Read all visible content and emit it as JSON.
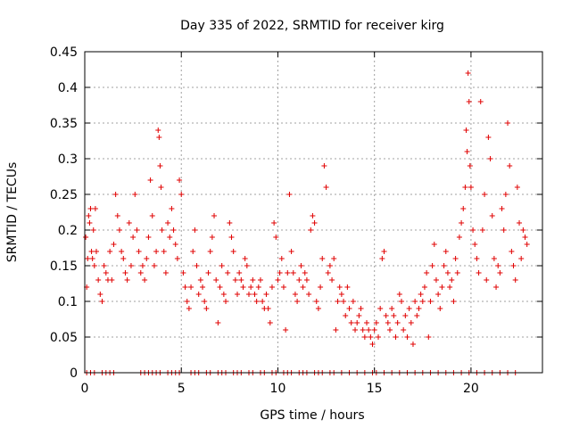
{
  "chart_data": {
    "type": "scatter",
    "title": "Day 335 of 2022, SRMTID for receiver kirg",
    "xlabel": "GPS time / hours",
    "ylabel": "SRMTID / TECUs",
    "xlim": [
      0,
      23.7
    ],
    "ylim": [
      0,
      0.45
    ],
    "xticks": [
      0,
      5,
      10,
      15,
      20
    ],
    "yticks": [
      0,
      0.05,
      0.1,
      0.15,
      0.2,
      0.25,
      0.3,
      0.35,
      0.4,
      0.45
    ],
    "xtick_labels": [
      "0",
      "5",
      "10",
      "15",
      "20"
    ],
    "ytick_labels": [
      "0",
      "0.05",
      "0.1",
      "0.15",
      "0.2",
      "0.25",
      "0.3",
      "0.35",
      "0.4",
      "0.45"
    ],
    "grid": true,
    "marker": "+",
    "color": "#e00000",
    "series": [
      {
        "name": "SRMTID",
        "points": [
          [
            0.05,
            0.19
          ],
          [
            0.1,
            0.12
          ],
          [
            0.15,
            0.16
          ],
          [
            0.2,
            0.22
          ],
          [
            0.25,
            0.21
          ],
          [
            0.3,
            0.23
          ],
          [
            0.35,
            0.17
          ],
          [
            0.4,
            0.16
          ],
          [
            0.45,
            0.2
          ],
          [
            0.5,
            0.15
          ],
          [
            0.55,
            0.23
          ],
          [
            0.6,
            0.17
          ],
          [
            0.7,
            0.13
          ],
          [
            0.8,
            0.11
          ],
          [
            0.9,
            0.1
          ],
          [
            1.0,
            0.15
          ],
          [
            1.1,
            0.14
          ],
          [
            1.2,
            0.13
          ],
          [
            1.3,
            0.17
          ],
          [
            1.4,
            0.13
          ],
          [
            1.5,
            0.18
          ],
          [
            1.6,
            0.25
          ],
          [
            1.7,
            0.22
          ],
          [
            1.8,
            0.2
          ],
          [
            1.9,
            0.17
          ],
          [
            2.0,
            0.16
          ],
          [
            2.1,
            0.14
          ],
          [
            2.2,
            0.13
          ],
          [
            2.3,
            0.21
          ],
          [
            2.4,
            0.15
          ],
          [
            2.5,
            0.19
          ],
          [
            2.6,
            0.25
          ],
          [
            2.7,
            0.2
          ],
          [
            2.8,
            0.17
          ],
          [
            2.9,
            0.14
          ],
          [
            3.0,
            0.15
          ],
          [
            3.1,
            0.13
          ],
          [
            3.2,
            0.16
          ],
          [
            3.3,
            0.19
          ],
          [
            3.4,
            0.27
          ],
          [
            3.5,
            0.22
          ],
          [
            3.6,
            0.15
          ],
          [
            3.7,
            0.17
          ],
          [
            3.8,
            0.34
          ],
          [
            3.85,
            0.33
          ],
          [
            3.9,
            0.29
          ],
          [
            3.95,
            0.26
          ],
          [
            4.0,
            0.2
          ],
          [
            4.1,
            0.17
          ],
          [
            4.2,
            0.14
          ],
          [
            4.3,
            0.21
          ],
          [
            4.4,
            0.19
          ],
          [
            4.5,
            0.23
          ],
          [
            4.6,
            0.2
          ],
          [
            4.7,
            0.18
          ],
          [
            4.8,
            0.16
          ],
          [
            4.9,
            0.27
          ],
          [
            5.0,
            0.25
          ],
          [
            5.1,
            0.14
          ],
          [
            5.2,
            0.12
          ],
          [
            5.3,
            0.1
          ],
          [
            5.4,
            0.09
          ],
          [
            5.5,
            0.12
          ],
          [
            5.6,
            0.17
          ],
          [
            5.7,
            0.2
          ],
          [
            5.8,
            0.15
          ],
          [
            5.9,
            0.11
          ],
          [
            6.0,
            0.13
          ],
          [
            6.1,
            0.12
          ],
          [
            6.2,
            0.1
          ],
          [
            6.3,
            0.09
          ],
          [
            6.4,
            0.14
          ],
          [
            6.5,
            0.17
          ],
          [
            6.6,
            0.19
          ],
          [
            6.7,
            0.22
          ],
          [
            6.8,
            0.13
          ],
          [
            6.9,
            0.07
          ],
          [
            7.0,
            0.12
          ],
          [
            7.1,
            0.15
          ],
          [
            7.2,
            0.11
          ],
          [
            7.3,
            0.1
          ],
          [
            7.4,
            0.14
          ],
          [
            7.5,
            0.21
          ],
          [
            7.6,
            0.19
          ],
          [
            7.7,
            0.17
          ],
          [
            7.8,
            0.13
          ],
          [
            7.9,
            0.11
          ],
          [
            8.0,
            0.14
          ],
          [
            8.1,
            0.13
          ],
          [
            8.2,
            0.12
          ],
          [
            8.3,
            0.16
          ],
          [
            8.4,
            0.15
          ],
          [
            8.5,
            0.11
          ],
          [
            8.6,
            0.12
          ],
          [
            8.7,
            0.13
          ],
          [
            8.8,
            0.11
          ],
          [
            8.9,
            0.1
          ],
          [
            9.0,
            0.12
          ],
          [
            9.1,
            0.13
          ],
          [
            9.2,
            0.1
          ],
          [
            9.3,
            0.09
          ],
          [
            9.4,
            0.11
          ],
          [
            9.5,
            0.09
          ],
          [
            9.6,
            0.07
          ],
          [
            9.7,
            0.12
          ],
          [
            9.8,
            0.21
          ],
          [
            9.9,
            0.19
          ],
          [
            10.0,
            0.13
          ],
          [
            10.1,
            0.14
          ],
          [
            10.2,
            0.16
          ],
          [
            10.3,
            0.12
          ],
          [
            10.4,
            0.06
          ],
          [
            10.5,
            0.14
          ],
          [
            10.6,
            0.25
          ],
          [
            10.7,
            0.17
          ],
          [
            10.8,
            0.14
          ],
          [
            10.9,
            0.11
          ],
          [
            11.0,
            0.1
          ],
          [
            11.1,
            0.13
          ],
          [
            11.2,
            0.15
          ],
          [
            11.3,
            0.12
          ],
          [
            11.4,
            0.14
          ],
          [
            11.5,
            0.13
          ],
          [
            11.6,
            0.11
          ],
          [
            11.7,
            0.2
          ],
          [
            11.8,
            0.22
          ],
          [
            11.9,
            0.21
          ],
          [
            12.0,
            0.1
          ],
          [
            12.1,
            0.09
          ],
          [
            12.2,
            0.12
          ],
          [
            12.3,
            0.16
          ],
          [
            12.4,
            0.29
          ],
          [
            12.5,
            0.26
          ],
          [
            12.6,
            0.14
          ],
          [
            12.7,
            0.15
          ],
          [
            12.8,
            0.13
          ],
          [
            12.9,
            0.16
          ],
          [
            13.0,
            0.06
          ],
          [
            13.1,
            0.1
          ],
          [
            13.2,
            0.12
          ],
          [
            13.3,
            0.11
          ],
          [
            13.4,
            0.1
          ],
          [
            13.5,
            0.08
          ],
          [
            13.6,
            0.12
          ],
          [
            13.7,
            0.09
          ],
          [
            13.8,
            0.07
          ],
          [
            13.9,
            0.1
          ],
          [
            14.0,
            0.06
          ],
          [
            14.1,
            0.07
          ],
          [
            14.2,
            0.08
          ],
          [
            14.3,
            0.09
          ],
          [
            14.4,
            0.06
          ],
          [
            14.5,
            0.05
          ],
          [
            14.6,
            0.07
          ],
          [
            14.7,
            0.06
          ],
          [
            14.8,
            0.05
          ],
          [
            14.9,
            0.04
          ],
          [
            15.0,
            0.06
          ],
          [
            15.1,
            0.07
          ],
          [
            15.2,
            0.05
          ],
          [
            15.3,
            0.09
          ],
          [
            15.4,
            0.16
          ],
          [
            15.5,
            0.17
          ],
          [
            15.6,
            0.08
          ],
          [
            15.7,
            0.07
          ],
          [
            15.8,
            0.06
          ],
          [
            15.9,
            0.09
          ],
          [
            16.0,
            0.08
          ],
          [
            16.1,
            0.05
          ],
          [
            16.2,
            0.07
          ],
          [
            16.3,
            0.11
          ],
          [
            16.4,
            0.1
          ],
          [
            16.5,
            0.06
          ],
          [
            16.6,
            0.08
          ],
          [
            16.7,
            0.05
          ],
          [
            16.8,
            0.09
          ],
          [
            16.9,
            0.07
          ],
          [
            17.0,
            0.04
          ],
          [
            17.1,
            0.1
          ],
          [
            17.2,
            0.08
          ],
          [
            17.3,
            0.09
          ],
          [
            17.4,
            0.11
          ],
          [
            17.5,
            0.1
          ],
          [
            17.6,
            0.12
          ],
          [
            17.7,
            0.14
          ],
          [
            17.8,
            0.05
          ],
          [
            17.9,
            0.1
          ],
          [
            18.0,
            0.15
          ],
          [
            18.1,
            0.18
          ],
          [
            18.2,
            0.13
          ],
          [
            18.3,
            0.11
          ],
          [
            18.4,
            0.09
          ],
          [
            18.5,
            0.12
          ],
          [
            18.6,
            0.15
          ],
          [
            18.7,
            0.17
          ],
          [
            18.8,
            0.14
          ],
          [
            18.9,
            0.12
          ],
          [
            19.0,
            0.13
          ],
          [
            19.1,
            0.1
          ],
          [
            19.2,
            0.16
          ],
          [
            19.3,
            0.14
          ],
          [
            19.4,
            0.19
          ],
          [
            19.5,
            0.21
          ],
          [
            19.6,
            0.23
          ],
          [
            19.7,
            0.26
          ],
          [
            19.75,
            0.34
          ],
          [
            19.8,
            0.31
          ],
          [
            19.85,
            0.42
          ],
          [
            19.9,
            0.38
          ],
          [
            19.95,
            0.29
          ],
          [
            20.0,
            0.26
          ],
          [
            20.1,
            0.2
          ],
          [
            20.2,
            0.18
          ],
          [
            20.3,
            0.16
          ],
          [
            20.4,
            0.14
          ],
          [
            20.5,
            0.38
          ],
          [
            20.6,
            0.2
          ],
          [
            20.7,
            0.25
          ],
          [
            20.8,
            0.13
          ],
          [
            20.9,
            0.33
          ],
          [
            21.0,
            0.3
          ],
          [
            21.1,
            0.22
          ],
          [
            21.2,
            0.16
          ],
          [
            21.3,
            0.12
          ],
          [
            21.4,
            0.15
          ],
          [
            21.5,
            0.14
          ],
          [
            21.6,
            0.23
          ],
          [
            21.7,
            0.2
          ],
          [
            21.8,
            0.25
          ],
          [
            21.9,
            0.35
          ],
          [
            22.0,
            0.29
          ],
          [
            22.1,
            0.17
          ],
          [
            22.2,
            0.15
          ],
          [
            22.3,
            0.13
          ],
          [
            22.4,
            0.26
          ],
          [
            22.5,
            0.21
          ],
          [
            22.6,
            0.16
          ],
          [
            22.7,
            0.2
          ],
          [
            22.8,
            0.19
          ],
          [
            22.9,
            0.18
          ],
          [
            0.1,
            0.0
          ],
          [
            0.3,
            0.0
          ],
          [
            0.5,
            0.0
          ],
          [
            0.9,
            0.0
          ],
          [
            1.1,
            0.0
          ],
          [
            1.3,
            0.0
          ],
          [
            1.5,
            0.0
          ],
          [
            2.9,
            0.0
          ],
          [
            3.1,
            0.0
          ],
          [
            3.3,
            0.0
          ],
          [
            3.5,
            0.0
          ],
          [
            3.7,
            0.0
          ],
          [
            3.9,
            0.0
          ],
          [
            4.3,
            0.0
          ],
          [
            4.5,
            0.0
          ],
          [
            4.7,
            0.0
          ],
          [
            4.9,
            0.0
          ],
          [
            5.5,
            0.0
          ],
          [
            5.7,
            0.0
          ],
          [
            5.9,
            0.0
          ],
          [
            6.3,
            0.0
          ],
          [
            6.5,
            0.0
          ],
          [
            6.9,
            0.0
          ],
          [
            7.1,
            0.0
          ],
          [
            7.3,
            0.0
          ],
          [
            7.7,
            0.0
          ],
          [
            7.9,
            0.0
          ],
          [
            8.1,
            0.0
          ],
          [
            8.5,
            0.0
          ],
          [
            8.7,
            0.0
          ],
          [
            9.1,
            0.0
          ],
          [
            9.3,
            0.0
          ],
          [
            9.7,
            0.0
          ],
          [
            9.9,
            0.0
          ],
          [
            10.3,
            0.0
          ],
          [
            10.5,
            0.0
          ],
          [
            10.7,
            0.0
          ],
          [
            11.1,
            0.0
          ],
          [
            11.3,
            0.0
          ],
          [
            11.5,
            0.0
          ],
          [
            11.9,
            0.0
          ],
          [
            12.1,
            0.0
          ],
          [
            12.3,
            0.0
          ],
          [
            12.7,
            0.0
          ],
          [
            12.9,
            0.0
          ],
          [
            13.3,
            0.0
          ],
          [
            13.7,
            0.0
          ],
          [
            14.1,
            0.0
          ],
          [
            14.5,
            0.0
          ],
          [
            14.9,
            0.0
          ],
          [
            15.1,
            0.0
          ],
          [
            15.5,
            0.0
          ],
          [
            15.9,
            0.0
          ],
          [
            16.3,
            0.0
          ],
          [
            16.7,
            0.0
          ],
          [
            17.1,
            0.0
          ],
          [
            17.5,
            0.0
          ],
          [
            17.9,
            0.0
          ],
          [
            18.3,
            0.0
          ],
          [
            18.7,
            0.0
          ],
          [
            19.1,
            0.0
          ],
          [
            19.5,
            0.0
          ],
          [
            19.9,
            0.0
          ],
          [
            20.3,
            0.0
          ],
          [
            20.7,
            0.0
          ],
          [
            21.1,
            0.0
          ],
          [
            21.5,
            0.0
          ],
          [
            21.9,
            0.0
          ],
          [
            22.3,
            0.0
          ]
        ]
      }
    ]
  }
}
